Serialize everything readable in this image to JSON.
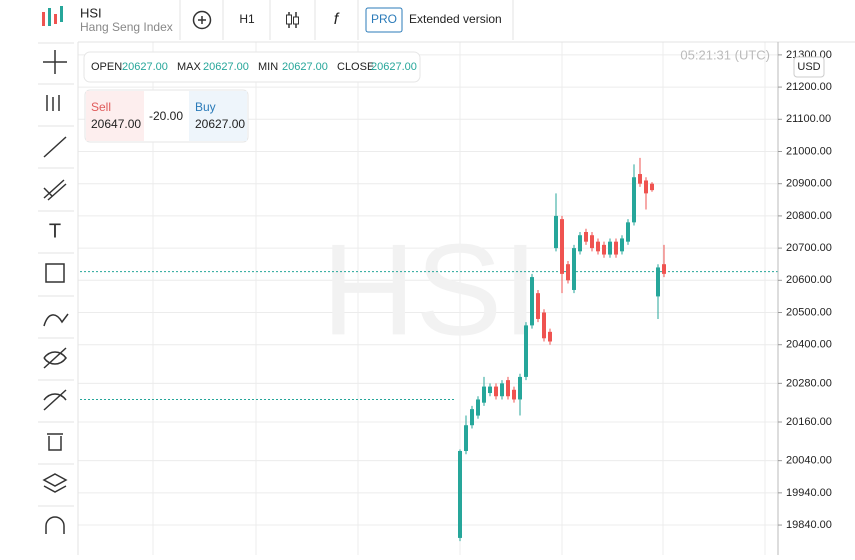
{
  "header": {
    "symbol": "HSI",
    "name": "Hang Seng Index",
    "timeframe": "H1",
    "pro": "PRO",
    "extended": "Extended version"
  },
  "ohlc_bar": {
    "items": [
      {
        "label": "OPEN",
        "value": "20627.00"
      },
      {
        "label": "MAX",
        "value": "20627.00"
      },
      {
        "label": "MIN",
        "value": "20627.00"
      },
      {
        "label": "CLOSE",
        "value": "20627.00"
      }
    ]
  },
  "trade": {
    "sell_label": "Sell",
    "sell": "20647.00",
    "spread": "-20.00",
    "buy_label": "Buy",
    "buy": "20627.00"
  },
  "clock": "05:21:31 (UTC)",
  "currency": "USD",
  "chart_data": {
    "type": "candlestick",
    "watermark": "HSI",
    "open": [
      19800,
      20070,
      20150,
      20180,
      20220,
      20250,
      20270,
      20240,
      20290,
      20260,
      20230,
      20300,
      20460,
      20560,
      20500,
      20440,
      20700,
      20790,
      20650,
      20570,
      20690,
      20750,
      20740,
      20720,
      20710,
      20680,
      20720,
      20690,
      20720,
      20780,
      20930,
      20910,
      20900,
      20550,
      20650
    ],
    "high": [
      20075,
      20180,
      20210,
      20240,
      20300,
      20280,
      20280,
      20290,
      20300,
      20270,
      20310,
      20470,
      20620,
      20570,
      20510,
      20450,
      20870,
      20800,
      20660,
      20710,
      20750,
      20760,
      20750,
      20730,
      20720,
      20730,
      20730,
      20740,
      20790,
      20960,
      20980,
      20920,
      20905,
      20650,
      20710
    ],
    "low": [
      19790,
      20060,
      20140,
      20170,
      20210,
      20240,
      20230,
      20230,
      20230,
      20220,
      20180,
      20290,
      20450,
      20470,
      20410,
      20400,
      20690,
      20560,
      20590,
      20560,
      20680,
      20710,
      20690,
      20680,
      20670,
      20670,
      20670,
      20680,
      20710,
      20770,
      20890,
      20820,
      20875,
      20480,
      20610
    ],
    "close": [
      20070,
      20150,
      20200,
      20230,
      20270,
      20270,
      20240,
      20280,
      20240,
      20230,
      20300,
      20460,
      20610,
      20480,
      20420,
      20410,
      20800,
      20620,
      20600,
      20700,
      20740,
      20720,
      20700,
      20690,
      20680,
      20720,
      20680,
      20730,
      20780,
      20920,
      20900,
      20870,
      20880,
      20640,
      20620
    ],
    "ylim": [
      19747,
      21340
    ],
    "yticks": [
      {
        "value": 21300,
        "label": "21300.00"
      },
      {
        "value": 21200,
        "label": "21200.00"
      },
      {
        "value": 21100,
        "label": "21100.00"
      },
      {
        "value": 21000,
        "label": "21000.00"
      },
      {
        "value": 20900,
        "label": "20900.00"
      },
      {
        "value": 20800,
        "label": "20800.00"
      },
      {
        "value": 20700,
        "label": "20700.00"
      },
      {
        "value": 20600,
        "label": "20600.00"
      },
      {
        "value": 20500,
        "label": "20500.00"
      },
      {
        "value": 20400,
        "label": "20400.00"
      },
      {
        "value": 20280,
        "label": "20280.00"
      },
      {
        "value": 20160,
        "label": "20160.00"
      },
      {
        "value": 20040,
        "label": "20040.00"
      },
      {
        "value": 19940,
        "label": "19940.00"
      },
      {
        "value": 19840,
        "label": "19840.00"
      }
    ],
    "price_lines": [
      20627,
      20230
    ],
    "up_color": "#26a69a",
    "down_color": "#ef5350",
    "grid": true
  }
}
